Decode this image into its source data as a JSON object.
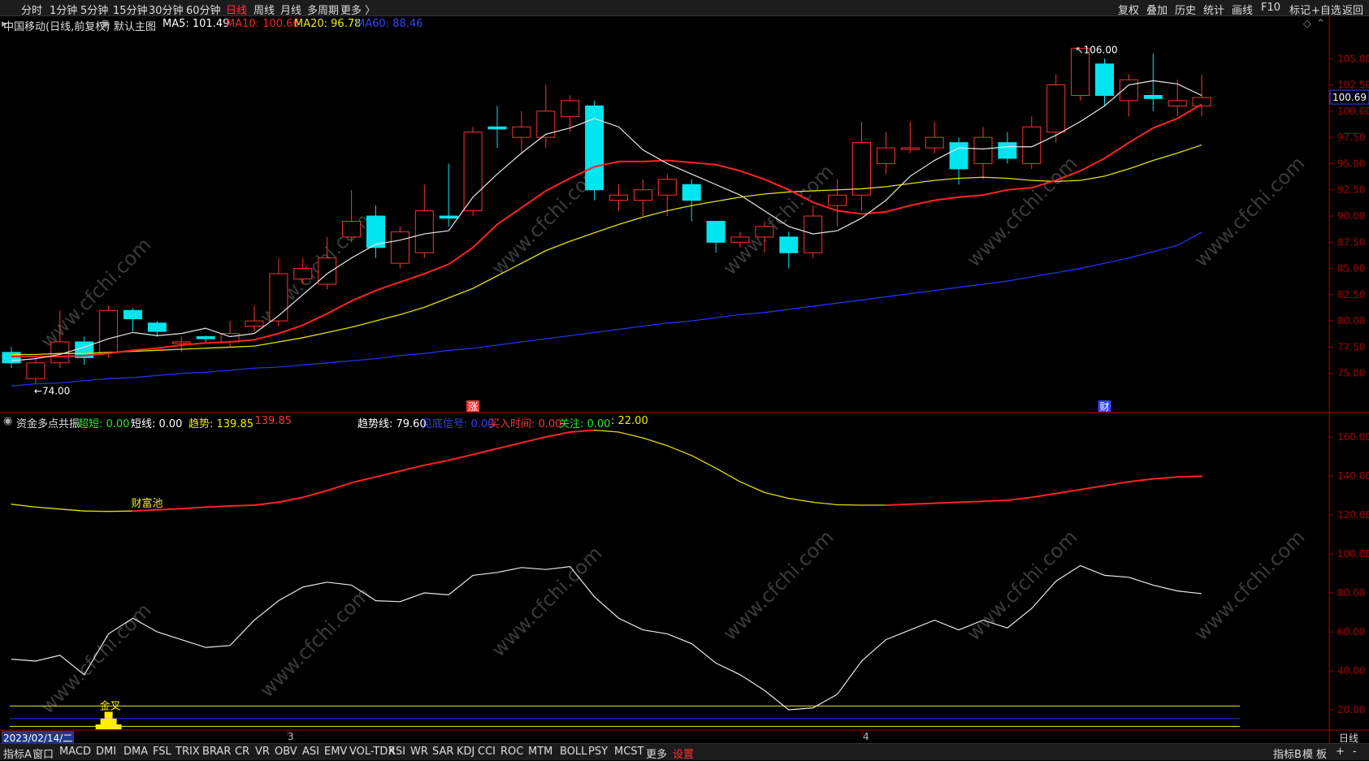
{
  "topbar": {
    "left": [
      "分时",
      "1分钟",
      "5分钟",
      "15分钟",
      "30分钟",
      "60分钟",
      "日线",
      "周线",
      "月线",
      "多周期",
      "更多 〉"
    ],
    "active": "日线",
    "right": [
      "复权",
      "叠加",
      "历史",
      "统计",
      "画线",
      "F10",
      "标记",
      "+自选",
      "返回"
    ]
  },
  "main_panel": {
    "title": "中国移动(日线,前复权)",
    "template": "默认主图",
    "ma_labels": [
      {
        "text": "MA5: 101.49",
        "color": "#ffffff"
      },
      {
        "text": "MA10: 100.66",
        "color": "#ff2222"
      },
      {
        "text": "MA20: 96.78",
        "color": "#eeee00"
      },
      {
        "text": "MA60: 88.46",
        "color": "#3344ff"
      }
    ],
    "high_marker": "106.00",
    "low_marker": "74.00",
    "price_tag": "100.69",
    "event_marks": [
      "涨",
      "财"
    ]
  },
  "sub_panel": {
    "title": "资金多点共振",
    "labels": [
      {
        "text": "超短: 0.00",
        "color": "#ffffff",
        "key_color": "#22ee22"
      },
      {
        "text": "短线: 0.00",
        "color": "#ffffff"
      },
      {
        "text": "趋势: 139.85",
        "color": "#eeee00"
      },
      {
        "text": ": 139.85",
        "color": "#ff3333"
      },
      {
        "text": "趋势线: 79.60",
        "color": "#ffffff"
      },
      {
        "text": "见底信号: 0.00",
        "color": "#3344ff"
      },
      {
        "text": "买入时间: 0.00",
        "color": "#ff3333"
      },
      {
        "text": "关注: 0.00",
        "color": "#22ee22"
      },
      {
        "text": ": 22.00",
        "color": "#eeee00"
      }
    ],
    "annotations": [
      "财富池",
      "金叉"
    ]
  },
  "time_axis": {
    "cursor_date": "2023/02/14/二",
    "month_marks": [
      "3",
      "4"
    ],
    "period_label": "日线"
  },
  "bottombar": {
    "items": [
      "指标A",
      "窗口",
      "MACD",
      "DMI",
      "DMA",
      "FSL",
      "TRIX",
      "BRAR",
      "CR",
      "VR",
      "OBV",
      "ASI",
      "EMV",
      "VOL-TDX",
      "RSI",
      "WR",
      "SAR",
      "KDJ",
      "CCI",
      "ROC",
      "MTM",
      "BOLL",
      "PSY",
      "MCST",
      "更多",
      "设置"
    ],
    "right": [
      "指标B",
      "模",
      "板",
      "+",
      "-"
    ]
  },
  "watermark": "www.cfchi.com",
  "colors": {
    "up": "#ff3333",
    "down": "#00e5ee",
    "ma5": "#e8e8e8",
    "ma10": "#ff2222",
    "ma20": "#e0e000",
    "ma60": "#2233ee",
    "axis": "#aa0000"
  },
  "chart_data": [
    {
      "type": "candlestick",
      "ylim": [
        72.5,
        107.5
      ],
      "yticks": [
        75.0,
        77.5,
        80.0,
        82.5,
        85.0,
        87.5,
        90.0,
        92.5,
        95.0,
        97.5,
        100.0,
        102.5,
        105.0
      ],
      "candles": [
        [
          77.0,
          76.0,
          77.5,
          75.5
        ],
        [
          74.5,
          76.0,
          76.5,
          74.0
        ],
        [
          76.0,
          78.0,
          81.0,
          75.5
        ],
        [
          78.0,
          76.5,
          78.5,
          75.8
        ],
        [
          77.0,
          81.0,
          81.5,
          76.5
        ],
        [
          81.0,
          80.2,
          81.2,
          79.0
        ],
        [
          79.8,
          79.0,
          80.0,
          78.5
        ],
        [
          78.0,
          78.0,
          78.5,
          77.0
        ],
        [
          78.5,
          78.3,
          78.6,
          78.0
        ],
        [
          78.0,
          78.8,
          80.0,
          77.5
        ],
        [
          79.5,
          80.0,
          81.5,
          79.0
        ],
        [
          80.0,
          84.5,
          86.0,
          79.5
        ],
        [
          84.0,
          85.0,
          86.0,
          83.5
        ],
        [
          83.5,
          86.0,
          88.0,
          83.0
        ],
        [
          88.0,
          89.5,
          92.5,
          87.5
        ],
        [
          90.0,
          87.0,
          91.0,
          86.0
        ],
        [
          85.5,
          88.5,
          89.0,
          85.0
        ],
        [
          86.5,
          90.5,
          93.0,
          86.0
        ],
        [
          90.0,
          89.8,
          95.0,
          89.0
        ],
        [
          90.5,
          98.0,
          98.5,
          90.0
        ],
        [
          98.5,
          98.3,
          100.5,
          96.5
        ],
        [
          97.5,
          98.5,
          100.0,
          96.0
        ],
        [
          97.5,
          100.0,
          102.5,
          96.5
        ],
        [
          99.5,
          101.0,
          101.5,
          98.0
        ],
        [
          100.5,
          92.5,
          101.0,
          91.5
        ],
        [
          91.5,
          92.0,
          93.0,
          90.5
        ],
        [
          91.5,
          92.5,
          93.5,
          90.0
        ],
        [
          92.0,
          93.5,
          94.0,
          90.0
        ],
        [
          93.0,
          91.5,
          93.5,
          89.5
        ],
        [
          89.5,
          87.5,
          89.5,
          86.5
        ],
        [
          87.5,
          88.0,
          88.5,
          87.0
        ],
        [
          88.0,
          89.0,
          89.5,
          86.5
        ],
        [
          88.0,
          86.5,
          88.5,
          85.0
        ],
        [
          86.5,
          90.0,
          91.0,
          86.0
        ],
        [
          91.0,
          92.0,
          93.5,
          89.0
        ],
        [
          92.0,
          97.0,
          99.0,
          90.5
        ],
        [
          95.0,
          96.5,
          98.0,
          94.0
        ],
        [
          96.5,
          96.5,
          99.0,
          96.0
        ],
        [
          96.5,
          97.5,
          99.0,
          96.0
        ],
        [
          97.0,
          94.5,
          97.5,
          93.0
        ],
        [
          95.0,
          97.5,
          98.5,
          93.5
        ],
        [
          97.0,
          95.5,
          98.0,
          95.0
        ],
        [
          95.0,
          98.5,
          99.5,
          94.5
        ],
        [
          98.0,
          102.5,
          103.5,
          97.0
        ],
        [
          101.5,
          106.0,
          106.0,
          101.0
        ],
        [
          104.5,
          101.5,
          105.0,
          100.5
        ],
        [
          101.0,
          103.0,
          103.5,
          99.5
        ],
        [
          101.5,
          101.2,
          105.5,
          100.0
        ],
        [
          100.5,
          101.0,
          103.0,
          99.5
        ],
        [
          100.5,
          101.3,
          103.5,
          99.5
        ]
      ],
      "ma": {
        "MA5": [
          76.2,
          76.4,
          76.8,
          77.5,
          78.3,
          78.9,
          78.6,
          78.8,
          79.3,
          78.5,
          78.8,
          80.5,
          82.5,
          84.5,
          86.0,
          87.3,
          87.7,
          88.3,
          88.6,
          91.8,
          94.0,
          96.0,
          97.8,
          98.4,
          99.3,
          98.5,
          96.3,
          95.0,
          94.0,
          93.0,
          92.0,
          90.5,
          89.0,
          88.3,
          88.6,
          89.8,
          91.5,
          93.8,
          95.3,
          96.5,
          96.4,
          96.6,
          96.6,
          97.7,
          99.0,
          100.5,
          102.5,
          102.9,
          102.6,
          101.49
        ],
        "MA10": [
          76.6,
          76.6,
          76.6,
          76.7,
          76.9,
          77.2,
          77.4,
          77.7,
          77.9,
          78.0,
          78.2,
          78.8,
          79.6,
          80.7,
          81.9,
          82.9,
          83.7,
          84.5,
          85.4,
          87.0,
          89.2,
          90.8,
          92.4,
          93.6,
          94.7,
          95.2,
          95.2,
          95.3,
          95.1,
          94.9,
          94.3,
          93.5,
          92.5,
          91.3,
          90.5,
          90.2,
          90.4,
          91.0,
          91.5,
          91.8,
          92.0,
          92.5,
          92.7,
          93.4,
          94.3,
          95.5,
          97.0,
          98.4,
          99.3,
          100.66
        ],
        "MA20": [
          76.8,
          76.8,
          76.9,
          76.9,
          77.0,
          77.1,
          77.2,
          77.3,
          77.4,
          77.5,
          77.6,
          78.0,
          78.4,
          78.9,
          79.4,
          80.0,
          80.6,
          81.3,
          82.2,
          83.1,
          84.3,
          85.5,
          86.7,
          87.6,
          88.4,
          89.2,
          89.9,
          90.5,
          91.0,
          91.4,
          91.8,
          92.1,
          92.3,
          92.4,
          92.5,
          92.6,
          92.8,
          93.1,
          93.4,
          93.6,
          93.7,
          93.6,
          93.4,
          93.3,
          93.4,
          93.8,
          94.5,
          95.3,
          96.0,
          96.78
        ],
        "MA60": [
          73.8,
          74.0,
          74.1,
          74.3,
          74.5,
          74.6,
          74.8,
          75.0,
          75.1,
          75.3,
          75.5,
          75.6,
          75.8,
          76.0,
          76.2,
          76.4,
          76.7,
          76.9,
          77.2,
          77.4,
          77.7,
          78.0,
          78.3,
          78.6,
          78.9,
          79.2,
          79.5,
          79.8,
          80.0,
          80.3,
          80.6,
          80.8,
          81.1,
          81.4,
          81.7,
          82.0,
          82.3,
          82.6,
          82.9,
          83.2,
          83.5,
          83.8,
          84.2,
          84.6,
          85.0,
          85.5,
          86.0,
          86.6,
          87.2,
          88.46
        ]
      }
    },
    {
      "type": "line",
      "ylim": [
        10.0,
        170.0
      ],
      "yticks": [
        20.0,
        40.0,
        60.0,
        80.0,
        100.0,
        120.0,
        140.0,
        160.0
      ],
      "series": [
        {
          "name": "趋势",
          "values": [
            125.5,
            124.0,
            123.0,
            122.0,
            121.8,
            122.0,
            122.6,
            123.2,
            124.0,
            124.6,
            125.0,
            126.5,
            129.0,
            132.5,
            136.5,
            139.5,
            142.5,
            145.5,
            148.0,
            151.0,
            154.0,
            157.0,
            160.0,
            162.5,
            163.5,
            162.5,
            159.5,
            155.5,
            150.5,
            144.0,
            137.0,
            131.5,
            128.5,
            126.5,
            125.2,
            125.0,
            125.0,
            125.5,
            126.0,
            126.5,
            127.0,
            127.5,
            129.0,
            131.0,
            133.0,
            135.0,
            137.0,
            138.5,
            139.5,
            139.85
          ]
        },
        {
          "name": "趋势线",
          "values": [
            46.0,
            45.0,
            48.0,
            38.0,
            59.0,
            67.0,
            60.0,
            56.0,
            52.0,
            53.0,
            66.0,
            76.0,
            83.0,
            85.5,
            84.0,
            76.0,
            75.5,
            80.0,
            79.0,
            89.0,
            90.5,
            93.0,
            92.0,
            93.5,
            78.0,
            67.0,
            61.0,
            59.0,
            54.0,
            44.0,
            38.0,
            30.0,
            20.0,
            21.0,
            28.0,
            45.0,
            56.0,
            61.0,
            66.0,
            61.0,
            66.0,
            62.0,
            72.0,
            86.0,
            94.0,
            89.0,
            88.0,
            84.0,
            81.0,
            79.6
          ]
        },
        {
          "name": "关注",
          "values": [
            22.0,
            22.0
          ]
        }
      ],
      "golden_cross_bar": {
        "index": 4,
        "bottom": 10.0,
        "top": 19.0
      }
    }
  ]
}
